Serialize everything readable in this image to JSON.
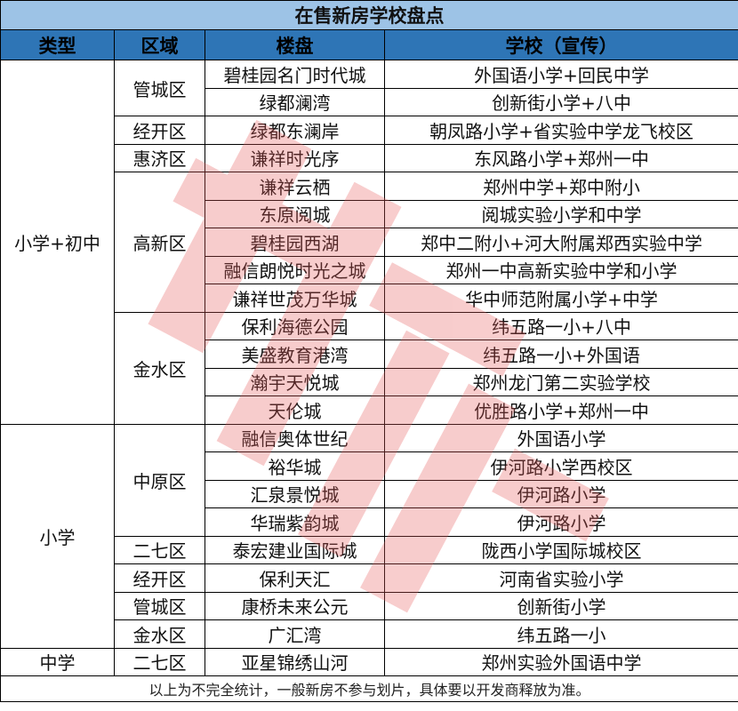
{
  "title": "在售新房学校盘点",
  "headers": [
    "类型",
    "区域",
    "楼盘",
    "学校（宣传）"
  ],
  "groups": [
    {
      "type": "小学+初中",
      "districts": [
        {
          "name": "管城区",
          "rows": [
            [
              "碧桂园名门时代城",
              "外国语小学+回民中学"
            ],
            [
              "绿都澜湾",
              "创新街小学+八中"
            ]
          ]
        },
        {
          "name": "经开区",
          "rows": [
            [
              "绿都东澜岸",
              "朝凤路小学+省实验中学龙飞校区"
            ]
          ]
        },
        {
          "name": "惠济区",
          "rows": [
            [
              "谦祥时光序",
              "东风路小学+郑州一中"
            ]
          ]
        },
        {
          "name": "高新区",
          "rows": [
            [
              "谦祥云栖",
              "郑州中学+郑中附小"
            ],
            [
              "东原阅城",
              "阅城实验小学和中学"
            ],
            [
              "碧桂园西湖",
              "郑中二附小+河大附属郑西实验中学"
            ],
            [
              "融信朗悦时光之城",
              "郑州一中高新实验中学和小学"
            ],
            [
              "谦祥世茂万华城",
              "华中师范附属小学+中学"
            ]
          ]
        },
        {
          "name": "金水区",
          "rows": [
            [
              "保利海德公园",
              "纬五路一小+八中"
            ],
            [
              "美盛教育港湾",
              "纬五路一小+外国语"
            ],
            [
              "瀚宇天悦城",
              "郑州龙门第二实验学校"
            ],
            [
              "天伦城",
              "优胜路小学+郑州一中"
            ]
          ]
        }
      ]
    },
    {
      "type": "小学",
      "districts": [
        {
          "name": "中原区",
          "rows": [
            [
              "融信奥体世纪",
              "外国语小学"
            ],
            [
              "裕华城",
              "伊河路小学西校区"
            ],
            [
              "汇泉景悦城",
              "伊河路小学"
            ],
            [
              "华瑞紫韵城",
              "伊河路小学"
            ]
          ]
        },
        {
          "name": "二七区",
          "rows": [
            [
              "泰宏建业国际城",
              "陇西小学国际城校区"
            ]
          ]
        },
        {
          "name": "经开区",
          "rows": [
            [
              "保利天汇",
              "河南省实验小学"
            ]
          ]
        },
        {
          "name": "管城区",
          "rows": [
            [
              "康桥未来公元",
              "创新街小学"
            ]
          ]
        },
        {
          "name": "金水区",
          "rows": [
            [
              "广汇湾",
              "纬五路一小"
            ]
          ]
        }
      ]
    },
    {
      "type": "中学",
      "districts": [
        {
          "name": "二七区",
          "rows": [
            [
              "亚星锦绣山河",
              "郑州实验外国语中学"
            ]
          ]
        }
      ]
    }
  ],
  "footer": "以上为不完全统计，一般新房不参与划片，具体要以开发商释放为准。",
  "colors": {
    "title_bg": "#9dc3e6",
    "header_bg": "#2e75b6",
    "watermark": "#e85a5a"
  }
}
